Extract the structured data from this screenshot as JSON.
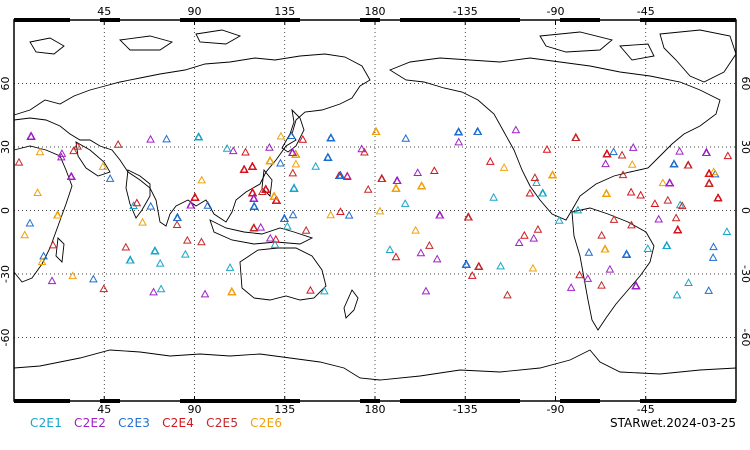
{
  "map": {
    "projection": "equirectangular",
    "lon_range": [
      0,
      360
    ],
    "lat_range": [
      -90,
      90
    ],
    "gridlines": "dotted",
    "top_axis_labels": [
      "45",
      "90",
      "135",
      "180",
      "-135",
      "-90",
      "-45"
    ],
    "bottom_axis_labels": [
      "45",
      "90",
      "135",
      "180",
      "-135",
      "-90",
      "-45"
    ],
    "left_axis_labels": [
      "60",
      "30",
      "0",
      "-30",
      "-60"
    ],
    "right_axis_labels": [
      "60",
      "30",
      "0",
      "-30",
      "-60"
    ],
    "marker_shape": "open-triangle",
    "observation_lat_band": [
      -40,
      38
    ]
  },
  "legend": [
    {
      "label": "C2E1",
      "color": "#1aa6c9"
    },
    {
      "label": "C2E2",
      "color": "#a020c8"
    },
    {
      "label": "C2E3",
      "color": "#1f6fd1"
    },
    {
      "label": "C2E4",
      "color": "#d8141e"
    },
    {
      "label": "C2E5",
      "color": "#c62828"
    },
    {
      "label": "C2E6",
      "color": "#f0a20c"
    }
  ],
  "stamp": "STARwet.2024-03-25"
}
